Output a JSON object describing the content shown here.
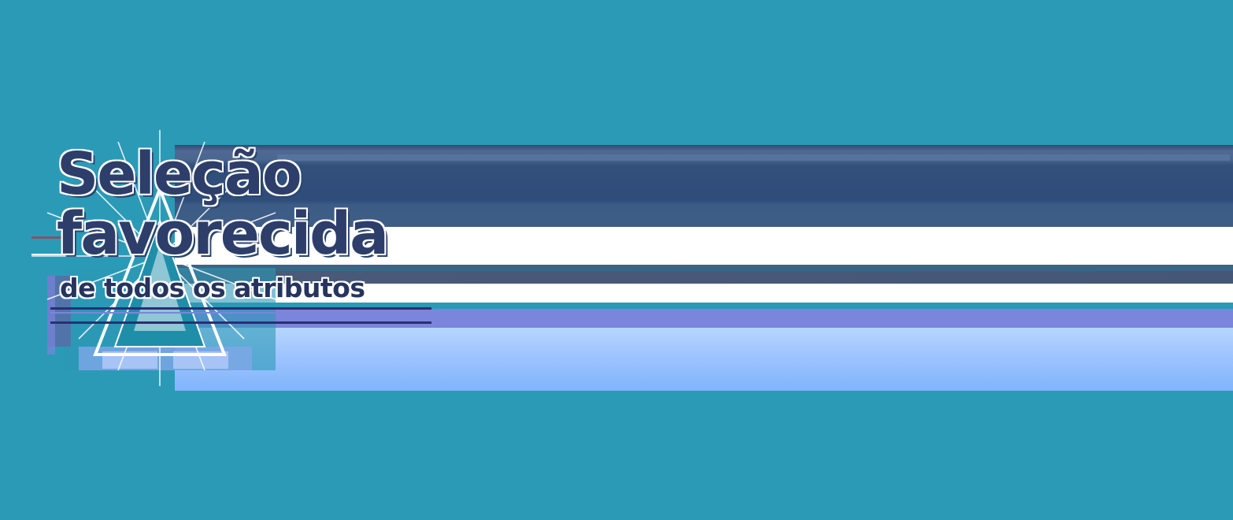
{
  "title": {
    "line1": "Seleção",
    "line2": "favorecida",
    "subtitle": "de todos os atributos"
  },
  "colors": {
    "background": "#2b9ab6",
    "title_text": "#2e3e6a",
    "banner_dark": "#2f4c7a",
    "banner_purple": "#7b85dc",
    "banner_light": "#9ec4ff",
    "outline": "#ffffff"
  },
  "icons": {
    "emblem": "starburst-triangle-icon"
  }
}
